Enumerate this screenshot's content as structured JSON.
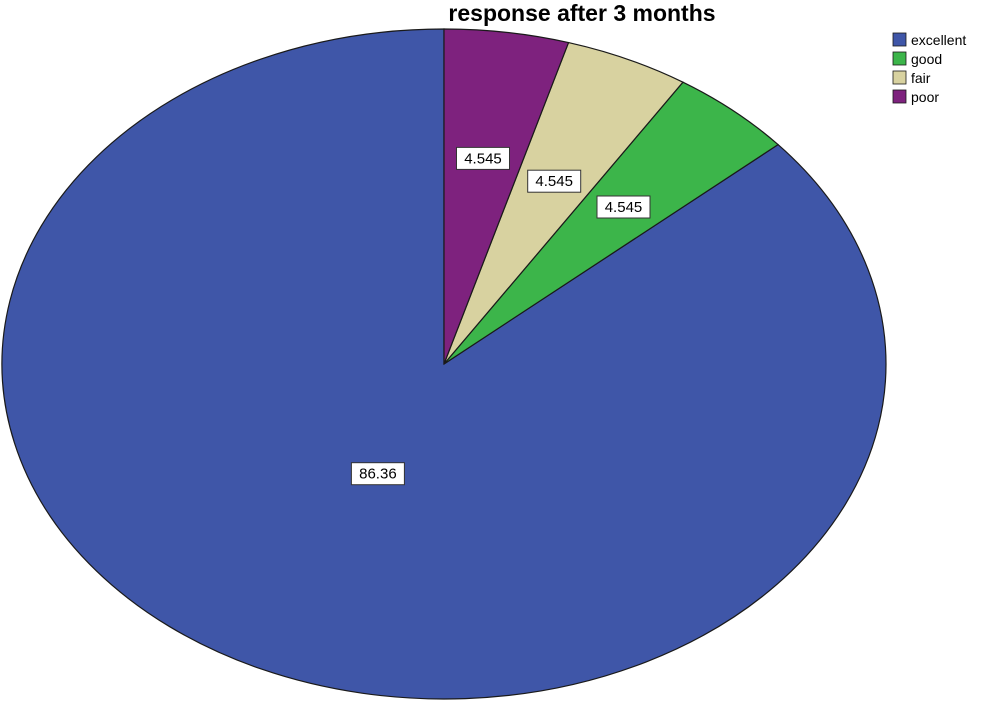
{
  "chart_data": {
    "type": "pie",
    "title": "response after 3 months",
    "legend_position": "top-right",
    "slices": [
      {
        "label": "excellent",
        "value": 86.36,
        "display": "86.36",
        "color": "#3f56a8"
      },
      {
        "label": "good",
        "value": 4.545,
        "display": "4.545",
        "color": "#3cb54a"
      },
      {
        "label": "fair",
        "value": 4.545,
        "display": "4.545",
        "color": "#d8d2a0"
      },
      {
        "label": "poor",
        "value": 4.545,
        "display": "4.545",
        "color": "#7e227e"
      }
    ]
  }
}
